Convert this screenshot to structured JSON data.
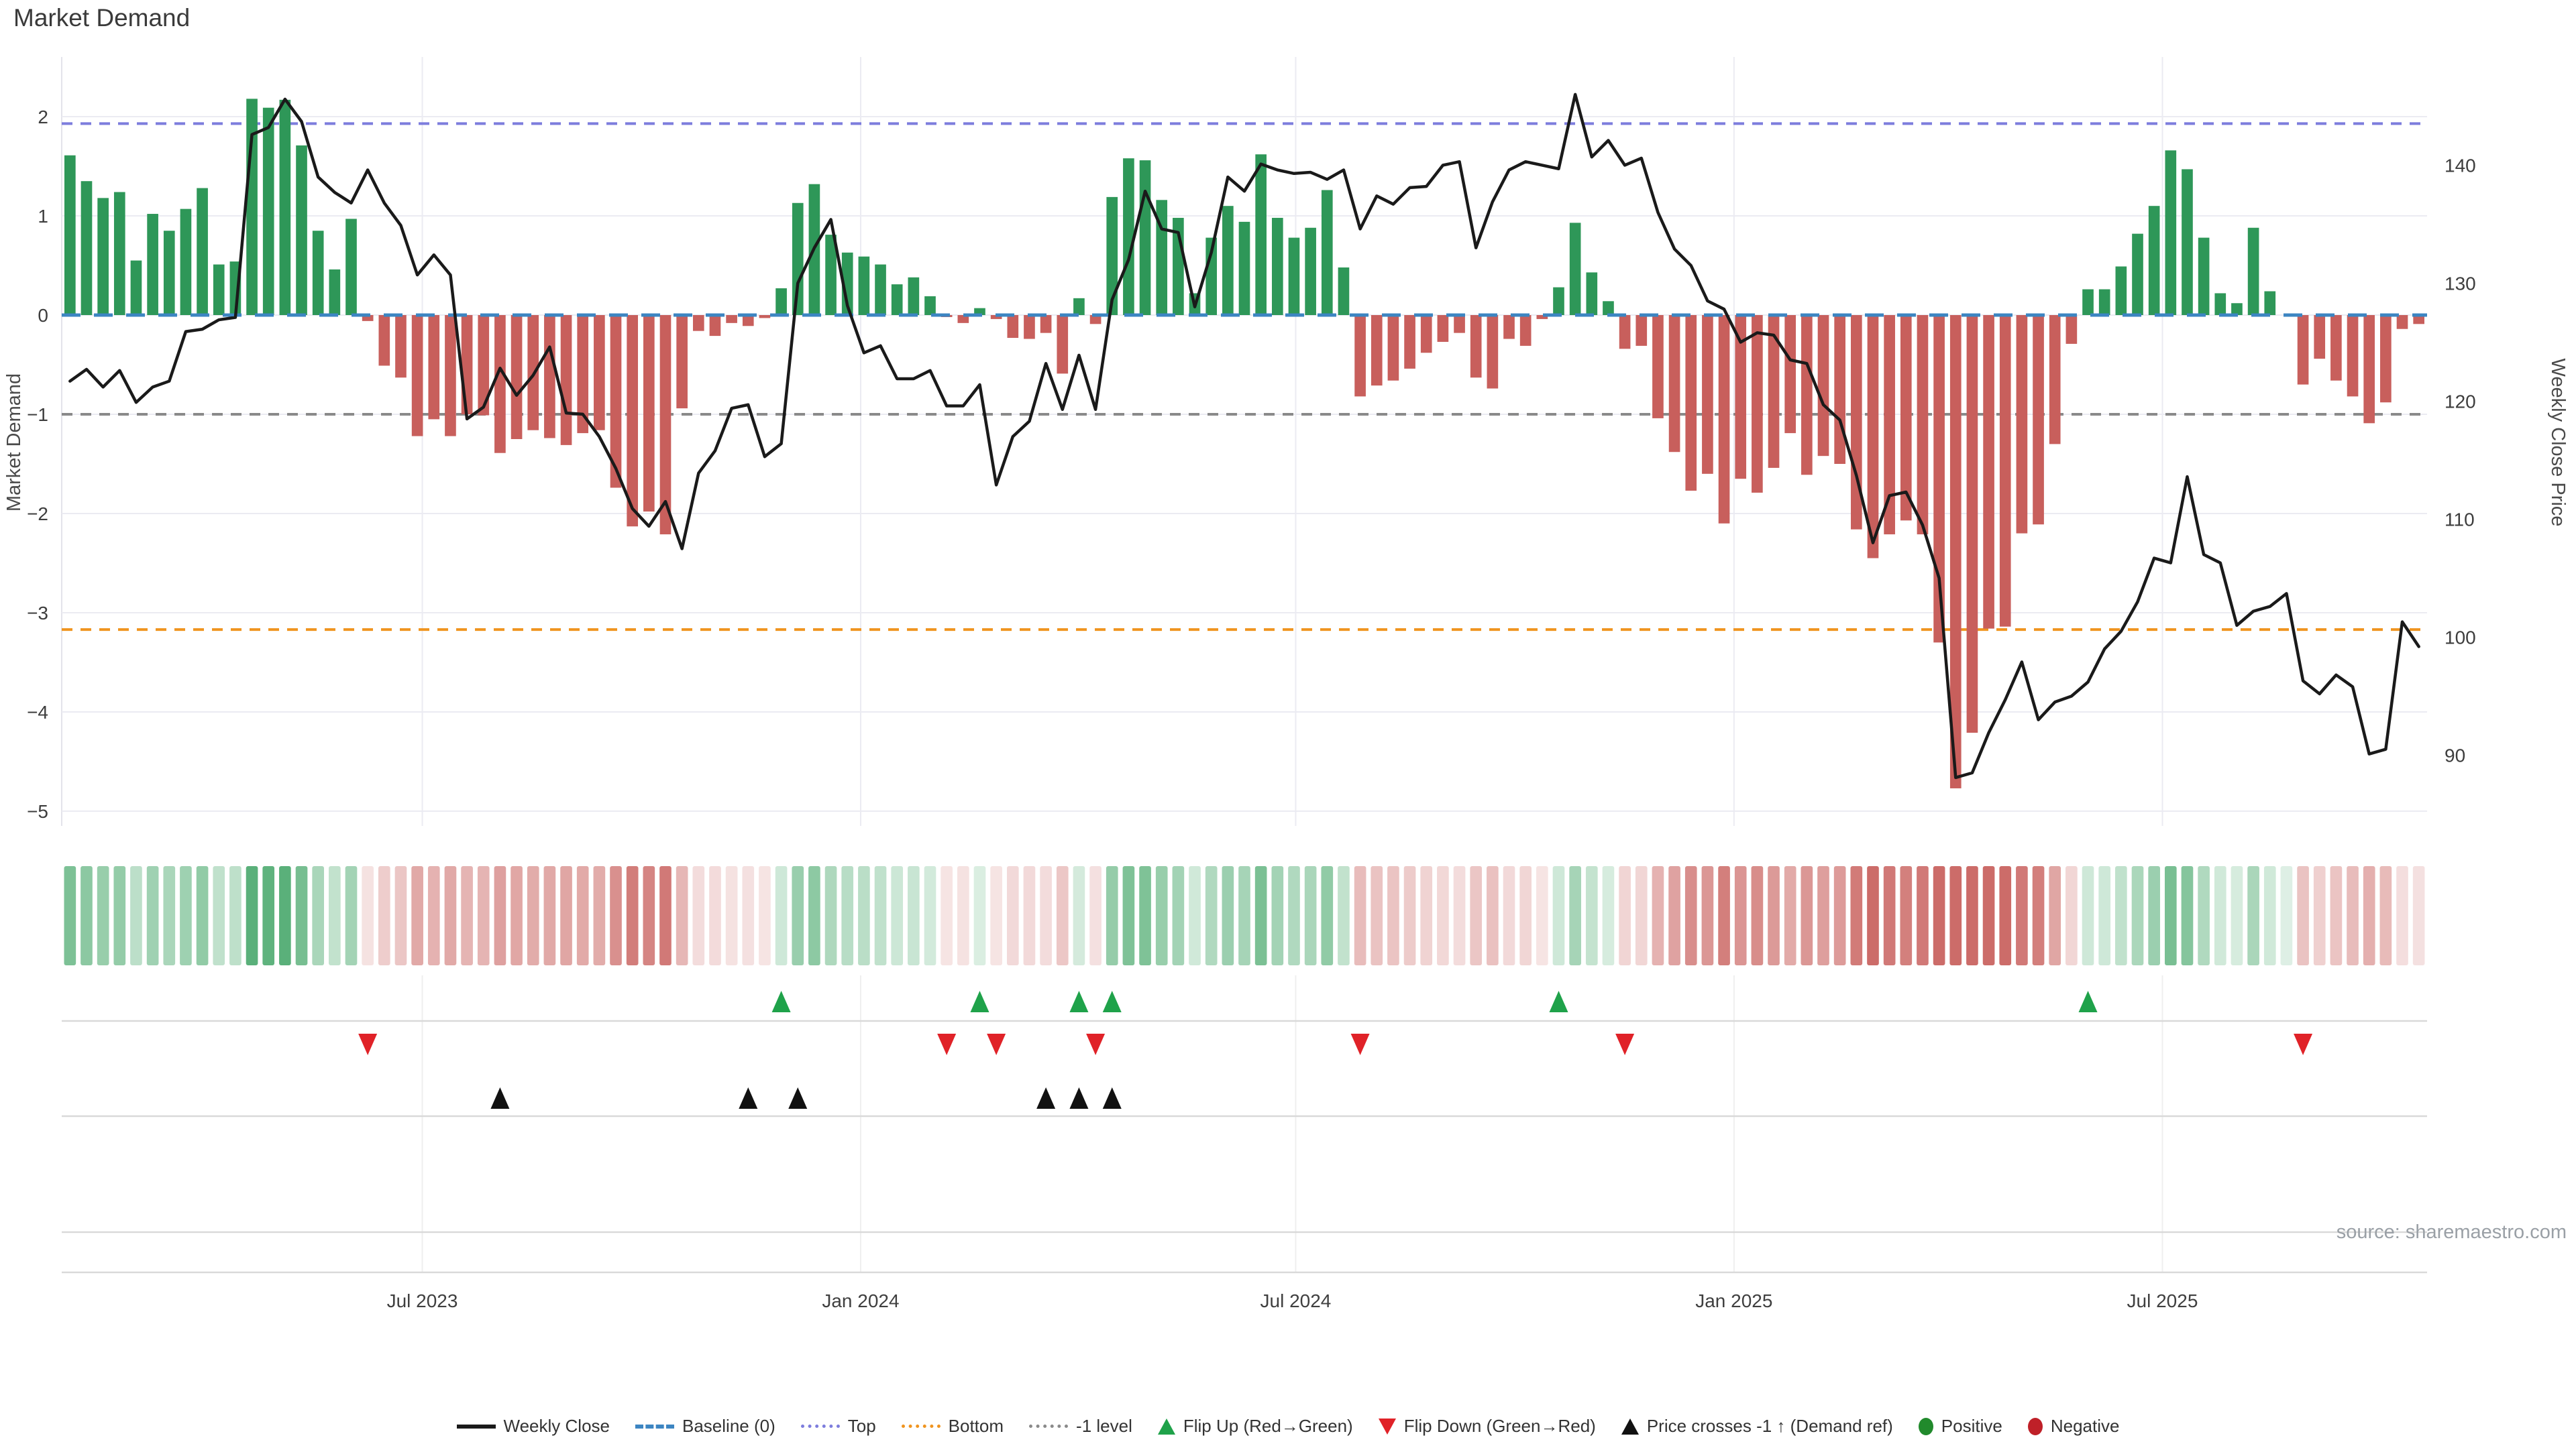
{
  "page": {
    "title": "Market Demand",
    "source": "source: sharemaestro.com"
  },
  "chart_data": {
    "type": "bar+line",
    "title": "Market Demand",
    "ylabel_left": "Market Demand",
    "ylabel_right": "Weekly Close Price",
    "weeks": 143,
    "frequency": "weekly",
    "approx_start": "Feb 2023",
    "demand": [
      1.61,
      1.35,
      1.18,
      1.24,
      0.55,
      1.02,
      0.85,
      1.07,
      1.28,
      0.51,
      0.54,
      2.18,
      2.09,
      2.17,
      1.71,
      0.85,
      0.46,
      0.97,
      -0.06,
      -0.51,
      -0.63,
      -1.22,
      -1.05,
      -1.22,
      -1.0,
      -1.01,
      -1.39,
      -1.25,
      -1.16,
      -1.24,
      -1.31,
      -1.19,
      -1.16,
      -1.74,
      -2.13,
      -1.98,
      -2.21,
      -0.94,
      -0.16,
      -0.21,
      -0.08,
      -0.11,
      -0.03,
      0.27,
      1.13,
      1.32,
      0.81,
      0.63,
      0.59,
      0.51,
      0.31,
      0.38,
      0.19,
      -0.02,
      -0.08,
      0.07,
      -0.04,
      -0.23,
      -0.24,
      -0.18,
      -0.59,
      0.17,
      -0.09,
      1.19,
      1.58,
      1.56,
      1.16,
      0.98,
      0.22,
      0.78,
      1.1,
      0.94,
      1.62,
      0.98,
      0.78,
      0.88,
      1.26,
      0.48,
      -0.82,
      -0.71,
      -0.66,
      -0.54,
      -0.38,
      -0.27,
      -0.18,
      -0.63,
      -0.74,
      -0.24,
      -0.31,
      -0.04,
      0.28,
      0.93,
      0.43,
      0.14,
      -0.34,
      -0.31,
      -1.04,
      -1.38,
      -1.77,
      -1.6,
      -2.1,
      -1.65,
      -1.79,
      -1.54,
      -1.19,
      -1.61,
      -1.42,
      -1.5,
      -2.16,
      -2.45,
      -2.21,
      -2.07,
      -2.21,
      -3.3,
      -4.77,
      -4.21,
      -3.16,
      -3.14,
      -2.2,
      -2.11,
      -1.3,
      -0.29,
      0.26,
      0.26,
      0.49,
      0.82,
      1.1,
      1.66,
      1.47,
      0.78,
      0.22,
      0.12,
      0.88,
      0.24,
      0.0,
      -0.7,
      -0.44,
      -0.66,
      -0.82,
      -1.09,
      -0.88,
      -0.14,
      -0.09
    ],
    "price": [
      121.7,
      122.7,
      121.2,
      122.6,
      119.9,
      121.2,
      121.7,
      125.9,
      126.1,
      126.9,
      127.1,
      142.6,
      143.2,
      145.6,
      143.7,
      139.0,
      137.7,
      136.8,
      139.6,
      136.8,
      134.9,
      130.7,
      132.4,
      130.7,
      118.5,
      119.5,
      122.8,
      120.5,
      122.2,
      124.6,
      119.0,
      118.9,
      117.0,
      114.3,
      110.9,
      109.4,
      111.5,
      107.5,
      113.9,
      115.8,
      119.4,
      119.7,
      115.3,
      116.4,
      130.0,
      133.0,
      135.4,
      128.1,
      124.1,
      124.7,
      121.9,
      121.9,
      122.6,
      119.6,
      119.6,
      121.4,
      112.9,
      117.0,
      118.3,
      123.2,
      119.3,
      123.9,
      119.3,
      128.6,
      132.0,
      137.8,
      134.6,
      134.3,
      128.0,
      132.6,
      139.0,
      137.8,
      140.1,
      139.6,
      139.3,
      139.4,
      138.8,
      139.6,
      134.6,
      137.4,
      136.7,
      138.1,
      138.2,
      140.0,
      140.3,
      133.0,
      136.9,
      139.6,
      140.3,
      140.0,
      139.7,
      146.0,
      140.7,
      142.1,
      140.0,
      140.6,
      136.0,
      132.9,
      131.5,
      128.5,
      127.8,
      125.0,
      125.8,
      125.6,
      123.5,
      123.2,
      119.7,
      118.4,
      113.7,
      108.0,
      112.0,
      112.3,
      109.5,
      105.0,
      88.1,
      88.5,
      91.9,
      94.7,
      97.9,
      93.0,
      94.5,
      95.0,
      96.2,
      99.0,
      100.5,
      103.0,
      106.7,
      106.3,
      113.6,
      107.0,
      106.3,
      101.0,
      102.2,
      102.6,
      103.7,
      96.3,
      95.2,
      96.8,
      95.8,
      90.1,
      90.5,
      101.3,
      99.2
    ],
    "left_ticks": [
      2,
      1,
      0,
      -1,
      -2,
      -3,
      -4,
      -5
    ],
    "right_ticks": [
      140,
      130,
      120,
      110,
      100,
      90
    ],
    "levels": {
      "baseline": 0,
      "top": 1.93,
      "bottom": -3.17,
      "minus1": -1
    },
    "x_ticks": [
      {
        "label": "Jul 2023",
        "week": 21.3
      },
      {
        "label": "Jan 2024",
        "week": 47.8
      },
      {
        "label": "Jul 2024",
        "week": 74.1
      },
      {
        "label": "Jan 2025",
        "week": 100.6
      },
      {
        "label": "Jul 2025",
        "week": 126.5
      }
    ],
    "markers": {
      "flip_up_weeks": [
        43,
        55,
        61,
        63,
        90,
        122
      ],
      "flip_down_weeks": [
        18,
        53,
        56,
        62,
        78,
        94,
        135
      ],
      "price_cross_weeks": [
        26,
        41,
        44,
        59,
        61,
        63
      ]
    },
    "legend": [
      {
        "swatch": "line",
        "color": "#1a1a1a",
        "label": "Weekly Close"
      },
      {
        "swatch": "dash",
        "color": "#3c85c2",
        "label": "Baseline (0)"
      },
      {
        "swatch": "dots",
        "color": "#7d7ddd",
        "label": "Top"
      },
      {
        "swatch": "dots",
        "color": "#f0941f",
        "label": "Bottom"
      },
      {
        "swatch": "dots",
        "color": "#8a8a8a",
        "label": "-1 level"
      },
      {
        "swatch": "tri-up",
        "color": "#1fa24a",
        "label": "Flip Up (Red→Green)"
      },
      {
        "swatch": "tri-down",
        "color": "#e02228",
        "label": "Flip Down (Green→Red)"
      },
      {
        "swatch": "tri-up",
        "color": "#111111",
        "label": "Price crosses -1 ↑ (Demand ref)"
      },
      {
        "swatch": "dot",
        "color": "#218a2c",
        "label": "Positive"
      },
      {
        "swatch": "dot",
        "color": "#bf2028",
        "label": "Negative"
      }
    ],
    "colors": {
      "positive_bar": "#2e9758",
      "negative_bar": "#c85f5c",
      "price_line": "#1a1a1a",
      "baseline": "#3c85c2",
      "top_line": "#7d7ddd",
      "bottom_line": "#f0941f",
      "minus1_line": "#8a8a8a",
      "flip_up": "#1fa24a",
      "flip_down": "#e02228",
      "price_cross": "#111111",
      "grid": "#ebebf2",
      "tick_text": "#3d3d3d",
      "heat_green": "52,158,91",
      "heat_red": "199,92,89"
    }
  }
}
